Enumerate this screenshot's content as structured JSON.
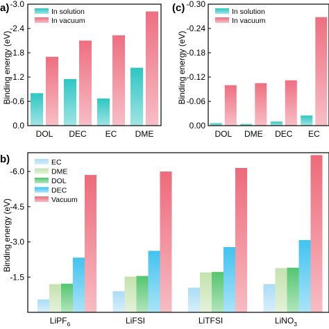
{
  "panel_labels": {
    "a": "a)",
    "c": "(c)",
    "b": "b)"
  },
  "chart_data": [
    {
      "type": "bar",
      "panel": "a",
      "categories": [
        "DOL",
        "DEC",
        "EC",
        "DME"
      ],
      "series": [
        {
          "name": "In solution",
          "values": [
            -0.8,
            -1.15,
            -0.67,
            -1.43
          ],
          "color": "#2ec6c2"
        },
        {
          "name": "In vacuum",
          "values": [
            -1.7,
            -2.1,
            -2.23,
            -2.82
          ],
          "color": "#ee6f80"
        }
      ],
      "ylabel": "Binding energy (eV)",
      "ylim": [
        0,
        -3.0
      ],
      "yticks": [
        "0.0",
        "-0.6",
        "-1.2",
        "-1.8",
        "-2.4",
        "-3.0"
      ],
      "grid": false,
      "legend": "top-left"
    },
    {
      "type": "bar",
      "panel": "c",
      "categories": [
        "DOL",
        "DME",
        "DEC",
        "EC"
      ],
      "series": [
        {
          "name": "In solution",
          "values": [
            -0.006,
            -0.004,
            -0.01,
            -0.025
          ],
          "color": "#2ec6c2"
        },
        {
          "name": "In vacuum",
          "values": [
            -0.1,
            -0.105,
            -0.112,
            -0.268
          ],
          "color": "#ee6f80"
        }
      ],
      "ylabel": "Binding energy (eV)",
      "ylim": [
        0,
        -0.3
      ],
      "yticks": [
        "0.00",
        "-0.06",
        "-0.12",
        "-0.18",
        "-0.24",
        "-0.30"
      ],
      "grid": false,
      "legend": "top-left"
    },
    {
      "type": "bar",
      "panel": "b",
      "categories": [
        "LiPF6",
        "LiFSI",
        "LiTFSI",
        "LiNO3"
      ],
      "series": [
        {
          "name": "EC",
          "values": [
            -0.55,
            -0.9,
            -1.05,
            -1.2
          ],
          "color": "#a9dcf6"
        },
        {
          "name": "DME",
          "values": [
            -1.2,
            -1.52,
            -1.7,
            -1.88
          ],
          "color": "#c4e2ad"
        },
        {
          "name": "DOL",
          "values": [
            -1.22,
            -1.55,
            -1.72,
            -1.9
          ],
          "color": "#54c56f"
        },
        {
          "name": "DEC",
          "values": [
            -2.33,
            -2.62,
            -2.78,
            -3.08
          ],
          "color": "#41c3ef"
        },
        {
          "name": "Vacuum",
          "values": [
            -5.85,
            -6.0,
            -6.15,
            -6.7
          ],
          "color": "#ee6a7a"
        }
      ],
      "ylabel": "Binding energy (eV)",
      "ylim": [
        0,
        -6.8
      ],
      "yticks": [
        "-1.5",
        "-3.0",
        "-4.5",
        "-6.0"
      ],
      "ytick_values": [
        -1.5,
        -3.0,
        -4.5,
        -6.0
      ],
      "grid": false,
      "legend": "top-left"
    }
  ]
}
